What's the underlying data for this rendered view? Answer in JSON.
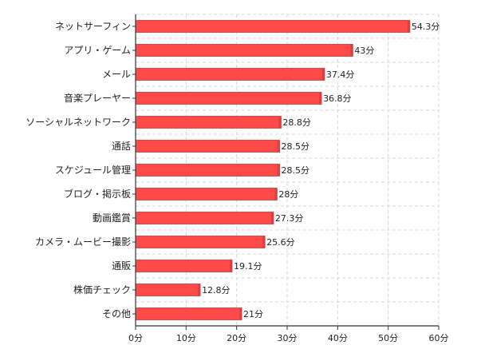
{
  "chart_data": {
    "type": "bar",
    "orientation": "horizontal",
    "categories": [
      "ネットサーフィン",
      "アプリ・ゲーム",
      "メール",
      "音楽プレーヤー",
      "ソーシャルネットワーク",
      "通話",
      "スケジュール管理",
      "ブログ・掲示板",
      "動画鑑賞",
      "カメラ・ムービー撮影",
      "通販",
      "株価チェック",
      "その他"
    ],
    "values": [
      54.3,
      43,
      37.4,
      36.8,
      28.8,
      28.5,
      28.5,
      28,
      27.3,
      25.6,
      19.1,
      12.8,
      21
    ],
    "data_labels": [
      "54.3分",
      "43分",
      "37.4分",
      "36.8分",
      "28.8分",
      "28.5分",
      "28.5分",
      "28分",
      "27.3分",
      "25.6分",
      "19.1分",
      "12.8分",
      "21分"
    ],
    "x_ticks": [
      0,
      10,
      20,
      30,
      40,
      50,
      60
    ],
    "x_tick_labels": [
      "0分",
      "10分",
      "20分",
      "30分",
      "40分",
      "50分",
      "60分"
    ],
    "xlim": [
      0,
      60
    ],
    "grid": true,
    "bar_color": "#ff4a4a",
    "bar_edge_color": "#c53a3a",
    "grid_color": "#d8d8d8",
    "axis_color": "#333333",
    "title": "",
    "xlabel": "",
    "ylabel": ""
  }
}
